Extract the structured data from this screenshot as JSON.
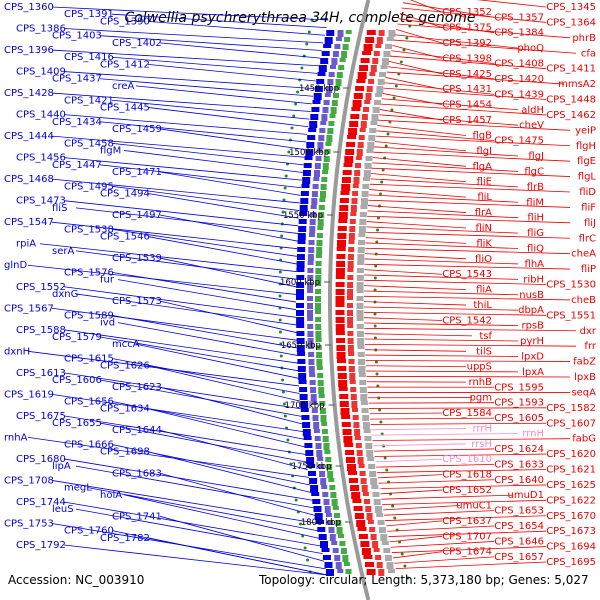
{
  "title": "Colwellia psychrerythraea 34H, complete genome",
  "footer": {
    "accession": "Accession: NC_003910",
    "topology": "Topology: circular; Length: 5,373,180 bp; Genes: 5,027"
  },
  "colors": {
    "forward_strand": "#0000dd",
    "reverse_strand": "#ee0000",
    "rrna": "#ffa0d0",
    "backbone": "#9a9a9a",
    "tick_label": "#000000",
    "rrna_label": "#ff88cc"
  },
  "tick_marks": [
    "1450 kbp",
    "1500 kbp",
    "1550 kbp",
    "1600 kbp",
    "1650 kbp",
    "1700 kbp",
    "1750 kbp",
    "1800 kbp"
  ],
  "left_labels": [
    "CPS_1360",
    "CPS_1391",
    "CPS_1390",
    "CPS_1386",
    "CPS_1403",
    "CPS_1402",
    "CPS_1396",
    "CPS_1416",
    "CPS_1412",
    "CPS_1409",
    "CPS_1437",
    "creA",
    "CPS_1428",
    "CPS_1421",
    "CPS_1445",
    "CPS_1440",
    "CPS_1434",
    "CPS_1459",
    "CPS_1444",
    "CPS_1458",
    "flgM",
    "CPS_1456",
    "CPS_1447",
    "CPS_1471",
    "CPS_1468",
    "CPS_1495",
    "CPS_1494",
    "CPS_1473",
    "fliS",
    "CPS_1497",
    "CPS_1547",
    "CPS_1538",
    "CPS_1546",
    "rpiA",
    "serA",
    "CPS_1539",
    "glnD",
    "CPS_1576",
    "fur",
    "CPS_1552",
    "dxnG",
    "CPS_1573",
    "CPS_1567",
    "CPS_1589",
    "ivd",
    "CPS_1588",
    "CPS_1579",
    "mccA",
    "dxnH",
    "CPS_1615",
    "CPS_1626",
    "CPS_1613",
    "CPS_1606",
    "CPS_1623",
    "CPS_1619",
    "CPS_1656",
    "CPS_1634",
    "CPS_1675",
    "CPS_1655",
    "CPS_1644",
    "rnhA",
    "CPS_1666",
    "CPS_1698",
    "CPS_1680",
    "lipA",
    "CPS_1683",
    "CPS_1708",
    "megL",
    "holA",
    "CPS_1744",
    "leuS",
    "CPS_1741",
    "CPS_1753",
    "CPS_1760",
    "CPS_1782",
    "CPS_1792"
  ],
  "right_labels": [
    "CPS_1345",
    "CPS_1352",
    "CPS_1357",
    "CPS_1364",
    "CPS_1375",
    "CPS_1384",
    "phrB",
    "CPS_1392",
    "phoQ",
    "cfa",
    "CPS_1398",
    "CPS_1408",
    "CPS_1411",
    "CPS_1425",
    "CPS_1420",
    "mmsA2",
    "CPS_1431",
    "CPS_1439",
    "CPS_1448",
    "CPS_1454",
    "aldH",
    "CPS_1462",
    "CPS_1457",
    "cheV",
    "yeiP",
    "flgB",
    "CPS_1475",
    "flgH",
    "flgI",
    "flgJ",
    "flgE",
    "flgA",
    "flgC",
    "flgL",
    "fliE",
    "flrB",
    "fliD",
    "fliL",
    "fliM",
    "fliF",
    "flrA",
    "fliH",
    "fliJ",
    "fliN",
    "fliG",
    "flrC",
    "fliK",
    "fliQ",
    "cheA",
    "fliO",
    "flhA",
    "fliP",
    "CPS_1543",
    "ribH",
    "CPS_1530",
    "fliA",
    "nusB",
    "cheB",
    "thiL",
    "dbpA",
    "CPS_1551",
    "CPS_1542",
    "rpsB",
    "dxr",
    "tsf",
    "pyrH",
    "frr",
    "tilS",
    "lpxD",
    "fabZ",
    "uppS",
    "lpxA",
    "lpxB",
    "rnhB",
    "CPS_1595",
    "seqA",
    "pgm",
    "CPS_1593",
    "CPS_1582",
    "CPS_1584",
    "CPS_1605",
    "CPS_1607",
    "rrrH",
    "rrnH",
    "fabG",
    "rrsH",
    "CPS_1624",
    "CPS_1620",
    "CPS_1610",
    "CPS_1633",
    "CPS_1621",
    "CPS_1618",
    "CPS_1640",
    "CPS_1625",
    "CPS_1652",
    "umuD1",
    "CPS_1622",
    "umuC1",
    "CPS_1653",
    "CPS_1670",
    "CPS_1637",
    "CPS_1654",
    "CPS_1673",
    "CPS_1707",
    "CPS_1646",
    "CPS_1694",
    "CPS_1674",
    "CPS_1657",
    "CPS_1695"
  ]
}
